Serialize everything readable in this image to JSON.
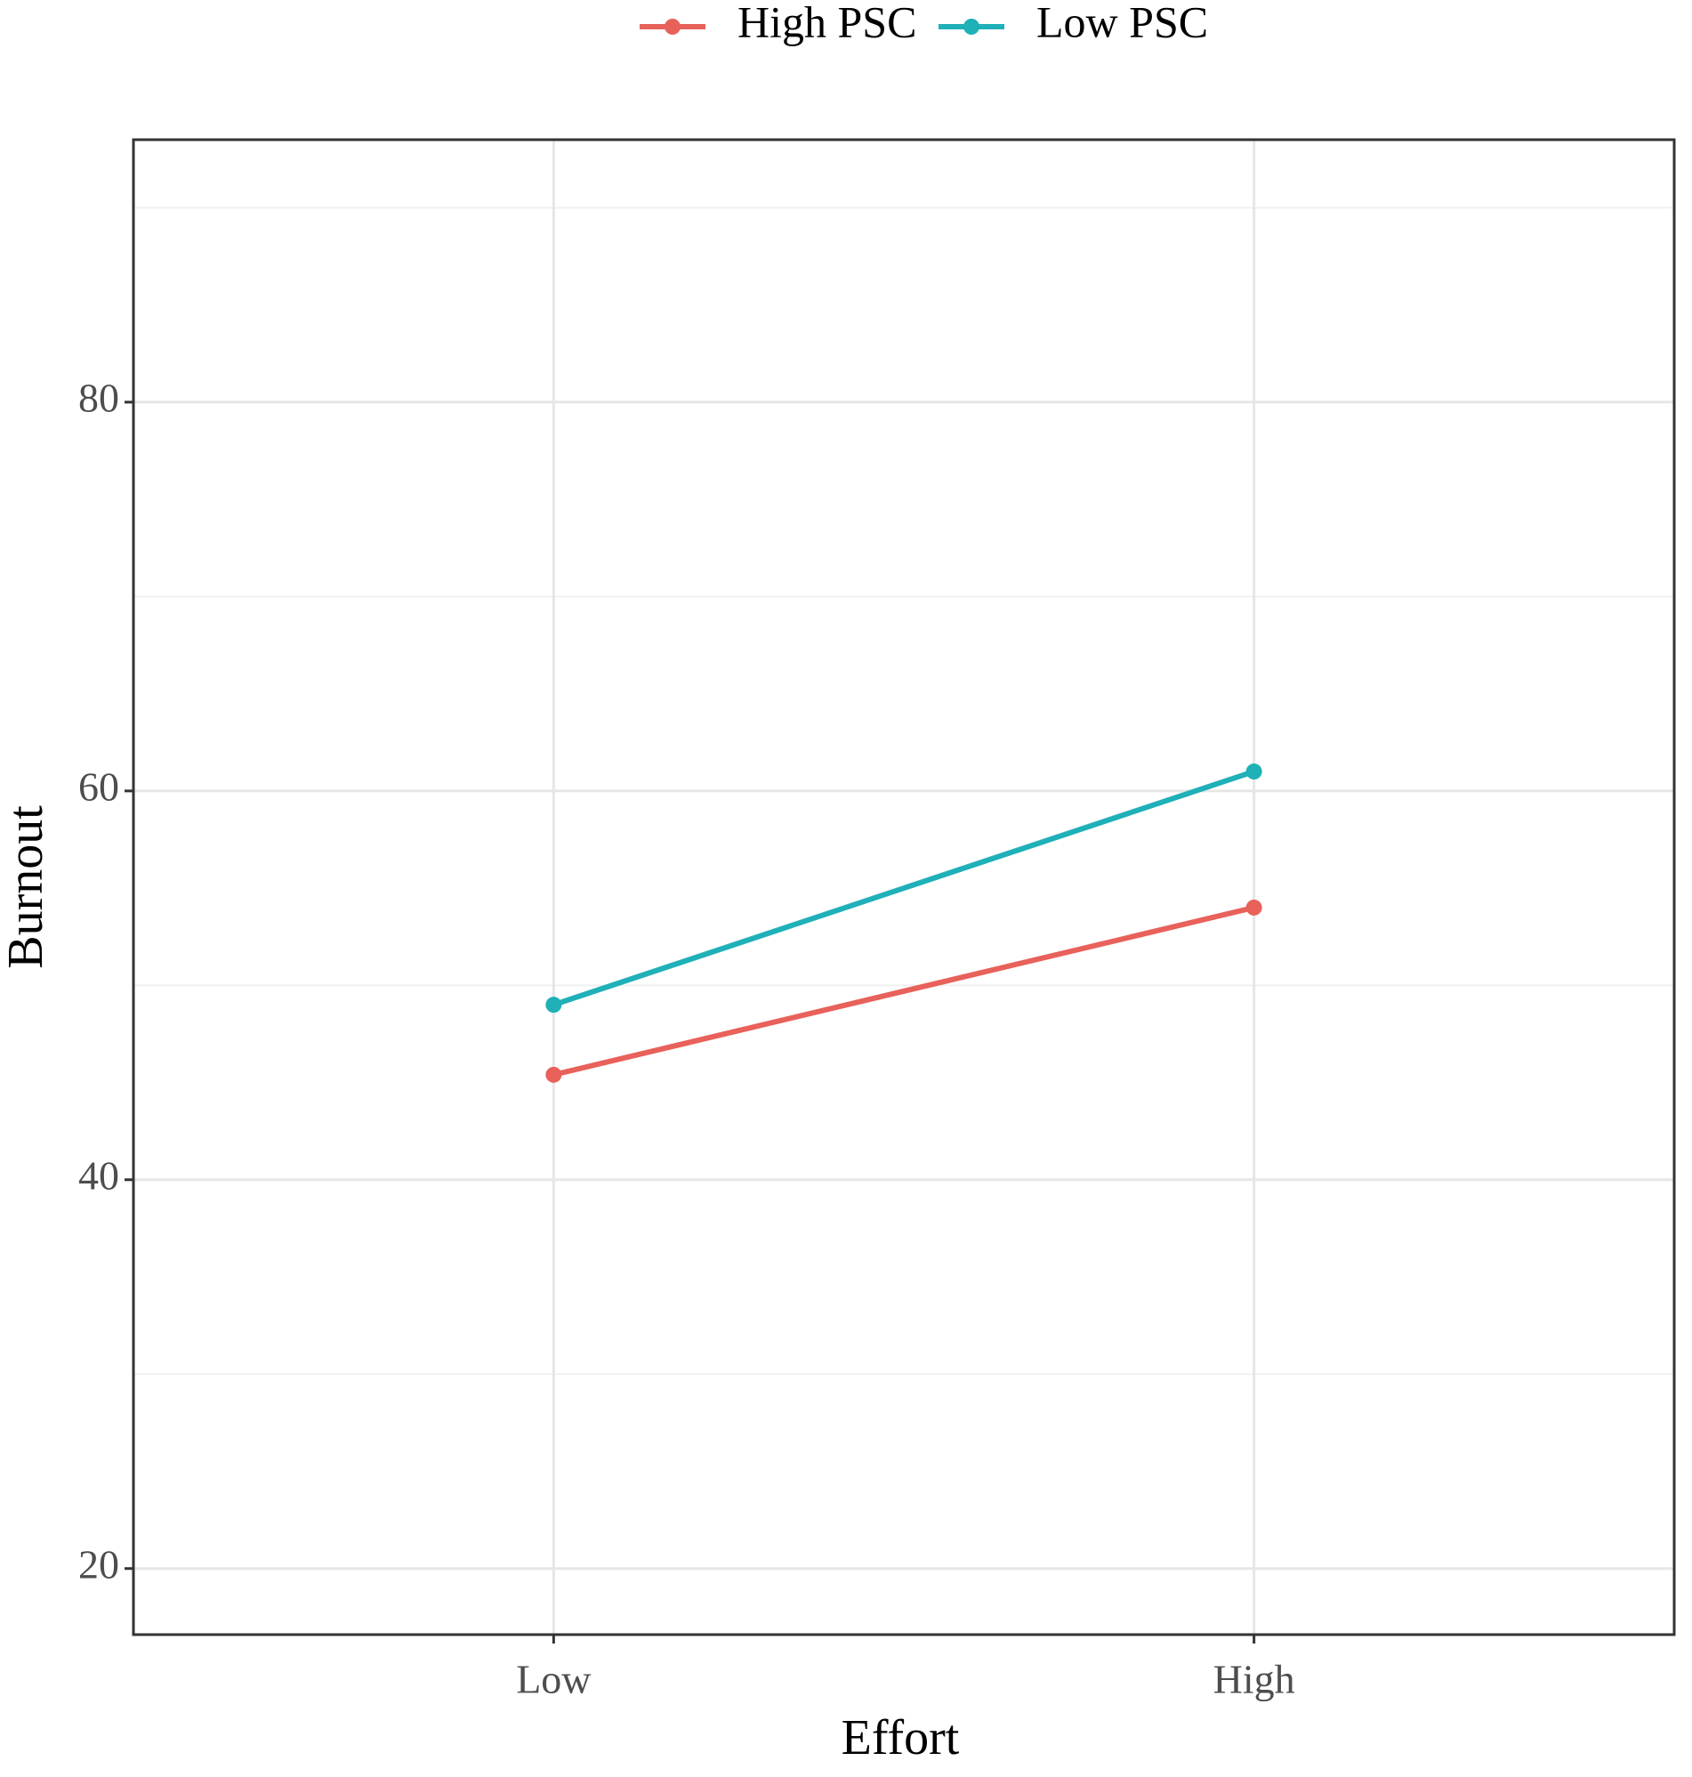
{
  "chart_data": {
    "type": "line",
    "x_label": "Effort",
    "y_label": "Burnout",
    "categories": [
      "Low",
      "High"
    ],
    "series": [
      {
        "name": "High PSC",
        "color": "#e8615a",
        "values": [
          45.4,
          54
        ]
      },
      {
        "name": "Low PSC",
        "color": "#1fb0b8",
        "values": [
          49,
          61
        ]
      }
    ],
    "ylim": [
      16.6,
      93.5
    ],
    "yticks": [
      20,
      40,
      60,
      80
    ],
    "minor_yticks": [
      30,
      50,
      70,
      90
    ],
    "grid": true,
    "legend": "top"
  }
}
